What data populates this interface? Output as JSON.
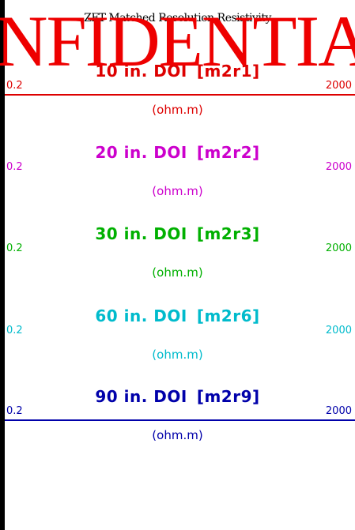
{
  "header": {
    "title": "ZFT Matched Resolution Resistivity",
    "watermark": "NFIDENTIA"
  },
  "tracks": [
    {
      "label": "10 in. DOI",
      "mnemonic": "[m2r1]",
      "scale_min": "0.2",
      "scale_max": "2000",
      "unit": "(ohm.m)",
      "color": "#dd0000",
      "line_style": "solid"
    },
    {
      "label": "20 in. DOI",
      "mnemonic": "[m2r2]",
      "scale_min": "0.2",
      "scale_max": "2000",
      "unit": "(ohm.m)",
      "color": "#cc00cc",
      "line_style": "short-dash"
    },
    {
      "label": "30 in. DOI",
      "mnemonic": "[m2r3]",
      "scale_min": "0.2",
      "scale_max": "2000",
      "unit": "(ohm.m)",
      "color": "#00b000",
      "line_style": "medium-dash"
    },
    {
      "label": "60 in. DOI",
      "mnemonic": "[m2r6]",
      "scale_min": "0.2",
      "scale_max": "2000",
      "unit": "(ohm.m)",
      "color": "#00bbcc",
      "line_style": "long-dash"
    },
    {
      "label": "90 in. DOI",
      "mnemonic": "[m2r9]",
      "scale_min": "0.2",
      "scale_max": "2000",
      "unit": "(ohm.m)",
      "color": "#0000aa",
      "line_style": "solid"
    }
  ]
}
